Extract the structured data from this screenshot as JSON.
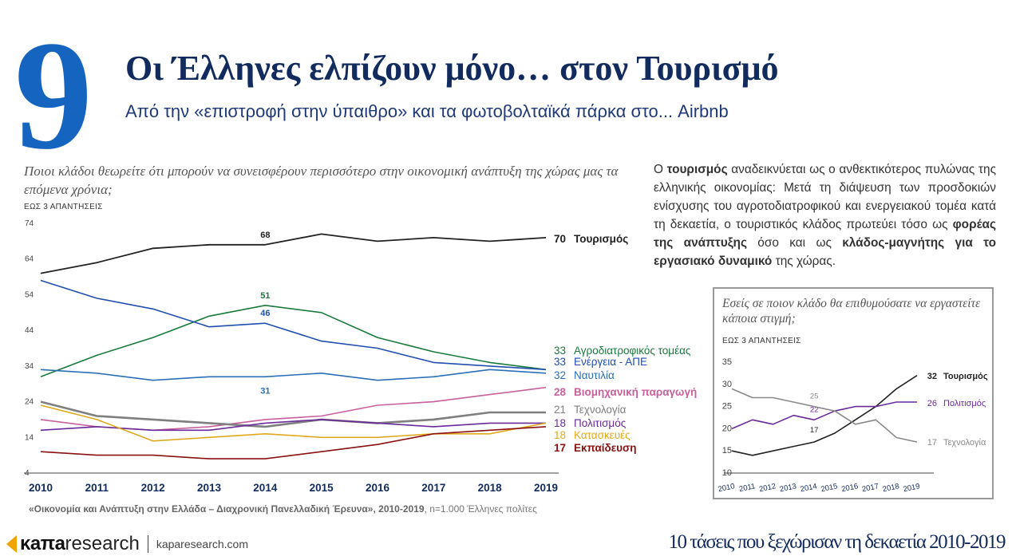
{
  "header": {
    "number": "9",
    "title": "Οι Έλληνες ελπίζουν μόνο… στον Τουρισμό",
    "subtitle": "Από την «επιστροφή στην ύπαιθρο» και τα φωτοβολταϊκά πάρκα στο... Airbnb"
  },
  "main": {
    "question": "Ποιοι κλάδοι θεωρείτε ότι μπορούν να συνεισφέρουν περισσότερο στην οικονομική ανάπτυξη της χώρας μας τα επόμενα χρόνια;",
    "note": "ΕΩΣ 3 ΑΠΑΝΤΗΣΕΙΣ",
    "source_bold": "«Οικονομία και Ανάπτυξη στην Ελλάδα – Διαχρονική Πανελλαδική Έρευνα», 2010-2019",
    "source_rest": ", n=1.000 Έλληνες πολίτες"
  },
  "paragraph": {
    "p1": "Ο ",
    "b1": "τουρισμός",
    "p2": " αναδεικνύεται ως ο ανθεκτικότερος πυλώνας της ελληνικής οικονομίας: Μετά τη διάψευση των προσδοκιών ενίσχυσης του αγροτοδιατροφικού και ενεργειακού τομέα κατά τη δεκαετία, ο τουριστικός κλάδος πρωτεύει τόσο ως ",
    "b2": "φορέας της ανάπτυξης",
    "p3": " όσο και ως ",
    "b3": "κλάδος-μαγνήτης για το εργασιακό δυναμικό",
    "p4": " της χώρας."
  },
  "inset": {
    "question": "Εσείς σε ποιον κλάδο θα επιθυμούσατε να εργαστείτε κάποια στιγμή;",
    "note": "ΕΩΣ 3 ΑΠΑΝΤΗΣΕΙΣ"
  },
  "footer": {
    "logo_kapa": "κaπa",
    "logo_research": "research",
    "website": "kaparesearch.com",
    "title": "10 τάσεις που ξεχώρισαν τη δεκαετία 2010-2019"
  },
  "chart_data": [
    {
      "type": "line",
      "x": [
        2010,
        2011,
        2012,
        2013,
        2014,
        2015,
        2016,
        2017,
        2018,
        2019
      ],
      "yticks": [
        4,
        14,
        24,
        34,
        44,
        54,
        64,
        74
      ],
      "ylim": [
        4,
        74
      ],
      "grid": false,
      "legend": "end-of-line labels",
      "series": [
        {
          "name": "Τουρισμός",
          "color": "#222222",
          "width": 1.8,
          "bold": true,
          "values": [
            60,
            63,
            67,
            68,
            68,
            71,
            69,
            70,
            69,
            70
          ],
          "end_label": "70",
          "point_labels": [
            {
              "x": 2014,
              "value": "68"
            }
          ]
        },
        {
          "name": "Αγροδιατροφικός τομέας",
          "color": "#1a7a3c",
          "width": 1.6,
          "bold": false,
          "values": [
            31,
            37,
            42,
            48,
            51,
            49,
            42,
            38,
            35,
            33
          ],
          "end_label": "33",
          "point_labels": [
            {
              "x": 2014,
              "value": "51"
            }
          ]
        },
        {
          "name": "Ενέργεια - ΑΠΕ",
          "color": "#1f4fb0",
          "width": 1.6,
          "bold": false,
          "values": [
            58,
            53,
            50,
            45,
            46,
            41,
            39,
            35,
            34,
            33
          ],
          "end_label": "33",
          "point_labels": [
            {
              "x": 2014,
              "value": "46"
            }
          ]
        },
        {
          "name": "Ναυτιλία",
          "color": "#2a6fb8",
          "width": 1.6,
          "bold": false,
          "values": [
            33,
            32,
            30,
            31,
            31,
            32,
            30,
            31,
            33,
            32
          ],
          "end_label": "32",
          "point_labels": [
            {
              "x": 2014,
              "value": "31",
              "below": true
            }
          ]
        },
        {
          "name": "Βιομηχανική παραγωγή",
          "color": "#c8609c",
          "width": 1.6,
          "bold": true,
          "values": [
            19,
            17,
            16,
            17,
            19,
            20,
            23,
            24,
            26,
            28
          ],
          "end_label": "28",
          "point_labels": []
        },
        {
          "name": "Τεχνολογία",
          "color": "#7f7f7f",
          "width": 2.6,
          "bold": false,
          "values": [
            24,
            20,
            19,
            18,
            17,
            19,
            18,
            19,
            21,
            21
          ],
          "end_label": "21",
          "point_labels": []
        },
        {
          "name": "Πολιτισμός",
          "color": "#6a2a9a",
          "width": 1.6,
          "bold": false,
          "values": [
            16,
            17,
            16,
            16,
            18,
            19,
            18,
            17,
            18,
            18
          ],
          "end_label": "18",
          "point_labels": []
        },
        {
          "name": "Κατασκευές",
          "color": "#e0a81c",
          "width": 1.6,
          "bold": false,
          "values": [
            23,
            19,
            13,
            14,
            15,
            14,
            14,
            15,
            15,
            18
          ],
          "end_label": "18",
          "point_labels": []
        },
        {
          "name": "Εκπαίδευση",
          "color": "#8b1010",
          "width": 1.6,
          "bold": true,
          "values": [
            10,
            9,
            9,
            8,
            8,
            10,
            12,
            15,
            16,
            17
          ],
          "end_label": "17",
          "point_labels": []
        }
      ]
    },
    {
      "type": "line",
      "x": [
        2010,
        2011,
        2012,
        2013,
        2014,
        2015,
        2016,
        2017,
        2018,
        2019
      ],
      "yticks": [
        10,
        15,
        20,
        25,
        30,
        35
      ],
      "ylim": [
        10,
        35
      ],
      "grid": false,
      "legend": "end-of-line labels",
      "series": [
        {
          "name": "Τουρισμός",
          "color": "#222222",
          "width": 1.6,
          "bold": true,
          "values": [
            15,
            14,
            15,
            16,
            17,
            19,
            22,
            25,
            29,
            32
          ],
          "end_label": "32",
          "point_labels": [
            {
              "x": 2014,
              "value": "17",
              "offset": 12
            }
          ]
        },
        {
          "name": "Πολιτισμός",
          "color": "#6a2a9a",
          "width": 1.6,
          "bold": false,
          "values": [
            20,
            22,
            21,
            23,
            22,
            24,
            25,
            25,
            26,
            26
          ],
          "end_label": "26",
          "point_labels": [
            {
              "x": 2014,
              "value": "22",
              "offset": 10
            }
          ]
        },
        {
          "name": "Τεχνολογία",
          "color": "#8a8a8a",
          "width": 1.6,
          "bold": false,
          "values": [
            29,
            27,
            27,
            26,
            25,
            24,
            21,
            22,
            18,
            17
          ],
          "end_label": "17",
          "point_labels": [
            {
              "x": 2014,
              "value": "25",
              "offset": 10
            }
          ]
        }
      ]
    }
  ]
}
